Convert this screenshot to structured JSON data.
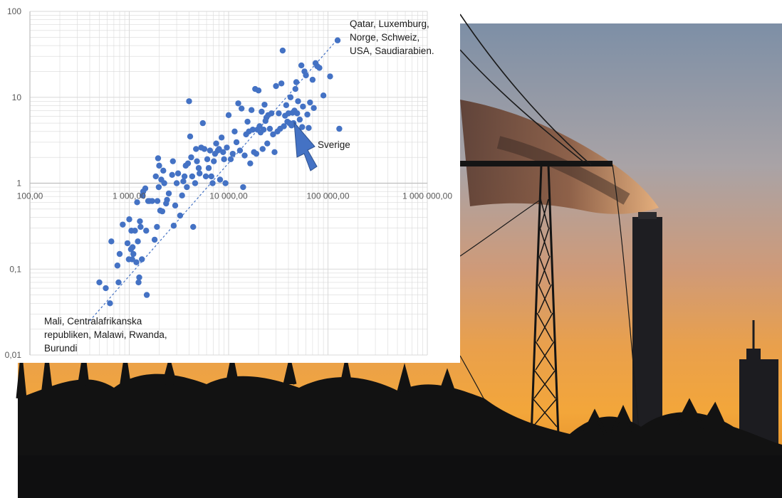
{
  "colors": {
    "marker": "#4472c4",
    "trendline": "#4472c4",
    "gridline": "#d9d9d9",
    "arrow": "#4472c4"
  },
  "chart_data": {
    "type": "scatter",
    "x_scale": "log",
    "y_scale": "log",
    "xlim": [
      100,
      1000000
    ],
    "ylim": [
      0.01,
      100
    ],
    "grid": true,
    "x_ticks": [
      {
        "value": 100,
        "label": "100,00"
      },
      {
        "value": 1000,
        "label": "1 000,00"
      },
      {
        "value": 10000,
        "label": "10 000,00"
      },
      {
        "value": 100000,
        "label": "100 000,00"
      },
      {
        "value": 1000000,
        "label": "1 000 000,00"
      }
    ],
    "y_ticks": [
      {
        "value": 100,
        "label": "100"
      },
      {
        "value": 10,
        "label": "10"
      },
      {
        "value": 1,
        "label": "1"
      },
      {
        "value": 0.1,
        "label": "0,1"
      },
      {
        "value": 0.01,
        "label": "0,01"
      }
    ],
    "trendline": {
      "x": [
        400,
        120000
      ],
      "y": [
        0.025,
        45
      ]
    },
    "annotations": [
      {
        "name": "top-right",
        "lines": [
          "Qatar, Luxemburg,",
          "Norge, Schweiz,",
          "USA, Saudiarabien."
        ]
      },
      {
        "name": "bottom-left",
        "lines": [
          "Mali, Centralafrikanska",
          "republiken, Malawi, Rwanda,",
          "Burundi"
        ]
      },
      {
        "name": "sverige",
        "lines": [
          "Sverige"
        ],
        "target": {
          "x": 50000,
          "y": 5
        }
      }
    ],
    "points": [
      [
        500,
        0.07
      ],
      [
        580,
        0.06
      ],
      [
        640,
        0.04
      ],
      [
        660,
        0.21
      ],
      [
        760,
        0.11
      ],
      [
        780,
        0.07
      ],
      [
        800,
        0.15
      ],
      [
        860,
        0.33
      ],
      [
        960,
        0.2
      ],
      [
        990,
        0.13
      ],
      [
        1000,
        0.38
      ],
      [
        1040,
        0.17
      ],
      [
        1050,
        0.28
      ],
      [
        1070,
        0.13
      ],
      [
        1080,
        0.18
      ],
      [
        1100,
        0.15
      ],
      [
        1140,
        0.28
      ],
      [
        1180,
        0.12
      ],
      [
        1200,
        0.6
      ],
      [
        1220,
        0.21
      ],
      [
        1240,
        0.07
      ],
      [
        1260,
        0.08
      ],
      [
        1280,
        0.36
      ],
      [
        1300,
        0.31
      ],
      [
        1340,
        0.13
      ],
      [
        1360,
        0.72
      ],
      [
        1380,
        0.8
      ],
      [
        1450,
        0.87
      ],
      [
        1480,
        0.28
      ],
      [
        1500,
        0.05
      ],
      [
        1550,
        0.62
      ],
      [
        1600,
        0.62
      ],
      [
        1700,
        0.62
      ],
      [
        1800,
        0.22
      ],
      [
        1850,
        1.2
      ],
      [
        1900,
        0.31
      ],
      [
        1920,
        0.62
      ],
      [
        1950,
        1.95
      ],
      [
        1980,
        0.9
      ],
      [
        2000,
        1.6
      ],
      [
        2050,
        0.48
      ],
      [
        2100,
        1.1
      ],
      [
        2150,
        0.47
      ],
      [
        2200,
        1.4
      ],
      [
        2250,
        1.0
      ],
      [
        2350,
        0.58
      ],
      [
        2400,
        0.64
      ],
      [
        2500,
        0.76
      ],
      [
        2700,
        1.25
      ],
      [
        2750,
        1.8
      ],
      [
        2800,
        0.32
      ],
      [
        2900,
        0.55
      ],
      [
        3000,
        1.0
      ],
      [
        3100,
        1.3
      ],
      [
        3250,
        0.42
      ],
      [
        3400,
        0.72
      ],
      [
        3500,
        1.05
      ],
      [
        3600,
        1.2
      ],
      [
        3700,
        1.6
      ],
      [
        3800,
        0.9
      ],
      [
        3900,
        1.7
      ],
      [
        4000,
        9.0
      ],
      [
        4100,
        3.5
      ],
      [
        4200,
        2.0
      ],
      [
        4300,
        1.2
      ],
      [
        4400,
        0.31
      ],
      [
        4600,
        1.0
      ],
      [
        4700,
        2.5
      ],
      [
        4800,
        1.8
      ],
      [
        5000,
        1.5
      ],
      [
        5100,
        1.3
      ],
      [
        5300,
        2.6
      ],
      [
        5500,
        5.0
      ],
      [
        5700,
        2.5
      ],
      [
        5900,
        1.2
      ],
      [
        6100,
        1.9
      ],
      [
        6300,
        1.5
      ],
      [
        6500,
        2.4
      ],
      [
        6700,
        1.2
      ],
      [
        6900,
        1.0
      ],
      [
        7100,
        1.8
      ],
      [
        7300,
        2.2
      ],
      [
        7500,
        2.9
      ],
      [
        7800,
        2.4
      ],
      [
        8000,
        2.5
      ],
      [
        8200,
        1.1
      ],
      [
        8500,
        3.4
      ],
      [
        8800,
        2.3
      ],
      [
        9000,
        1.9
      ],
      [
        9300,
        1.0
      ],
      [
        9600,
        2.6
      ],
      [
        10000,
        6.2
      ],
      [
        10500,
        1.9
      ],
      [
        11000,
        2.2
      ],
      [
        11500,
        4.0
      ],
      [
        12000,
        3.0
      ],
      [
        12500,
        8.5
      ],
      [
        13000,
        2.4
      ],
      [
        13500,
        7.4
      ],
      [
        14000,
        0.9
      ],
      [
        14500,
        2.1
      ],
      [
        15000,
        3.7
      ],
      [
        15500,
        5.2
      ],
      [
        16000,
        4.0
      ],
      [
        16500,
        1.7
      ],
      [
        17000,
        7.1
      ],
      [
        17500,
        4.2
      ],
      [
        18000,
        2.3
      ],
      [
        18500,
        12.5
      ],
      [
        19000,
        2.2
      ],
      [
        19500,
        4.2
      ],
      [
        20000,
        12.0
      ],
      [
        20500,
        4.6
      ],
      [
        21000,
        3.9
      ],
      [
        21500,
        6.8
      ],
      [
        22000,
        2.5
      ],
      [
        22500,
        4.2
      ],
      [
        23000,
        8.2
      ],
      [
        23500,
        5.3
      ],
      [
        24000,
        5.8
      ],
      [
        24500,
        2.9
      ],
      [
        25000,
        6.2
      ],
      [
        26000,
        4.3
      ],
      [
        27000,
        6.5
      ],
      [
        28000,
        3.7
      ],
      [
        29000,
        2.3
      ],
      [
        30000,
        13.5
      ],
      [
        31000,
        4.0
      ],
      [
        32000,
        6.5
      ],
      [
        33000,
        4.3
      ],
      [
        34000,
        14.5
      ],
      [
        35000,
        35.0
      ],
      [
        36000,
        4.6
      ],
      [
        37000,
        6.1
      ],
      [
        38000,
        8.1
      ],
      [
        39000,
        5.2
      ],
      [
        40000,
        6.5
      ],
      [
        41000,
        5.0
      ],
      [
        42000,
        10.0
      ],
      [
        43000,
        4.7
      ],
      [
        44000,
        6.6
      ],
      [
        45000,
        5.0
      ],
      [
        46000,
        7.0
      ],
      [
        47000,
        12.5
      ],
      [
        48000,
        15.0
      ],
      [
        49000,
        6.5
      ],
      [
        50000,
        9.0
      ],
      [
        51000,
        4.0
      ],
      [
        52000,
        5.5
      ],
      [
        54000,
        23.5
      ],
      [
        55000,
        4.5
      ],
      [
        56000,
        7.8
      ],
      [
        58000,
        20.0
      ],
      [
        60000,
        18.0
      ],
      [
        62000,
        6.3
      ],
      [
        64000,
        4.4
      ],
      [
        66000,
        8.7
      ],
      [
        70000,
        16.0
      ],
      [
        72000,
        7.5
      ],
      [
        75000,
        25.0
      ],
      [
        78000,
        23.0
      ],
      [
        82000,
        22.0
      ],
      [
        90000,
        10.5
      ],
      [
        105000,
        17.5
      ],
      [
        125000,
        46.0
      ],
      [
        130000,
        4.3
      ]
    ]
  }
}
